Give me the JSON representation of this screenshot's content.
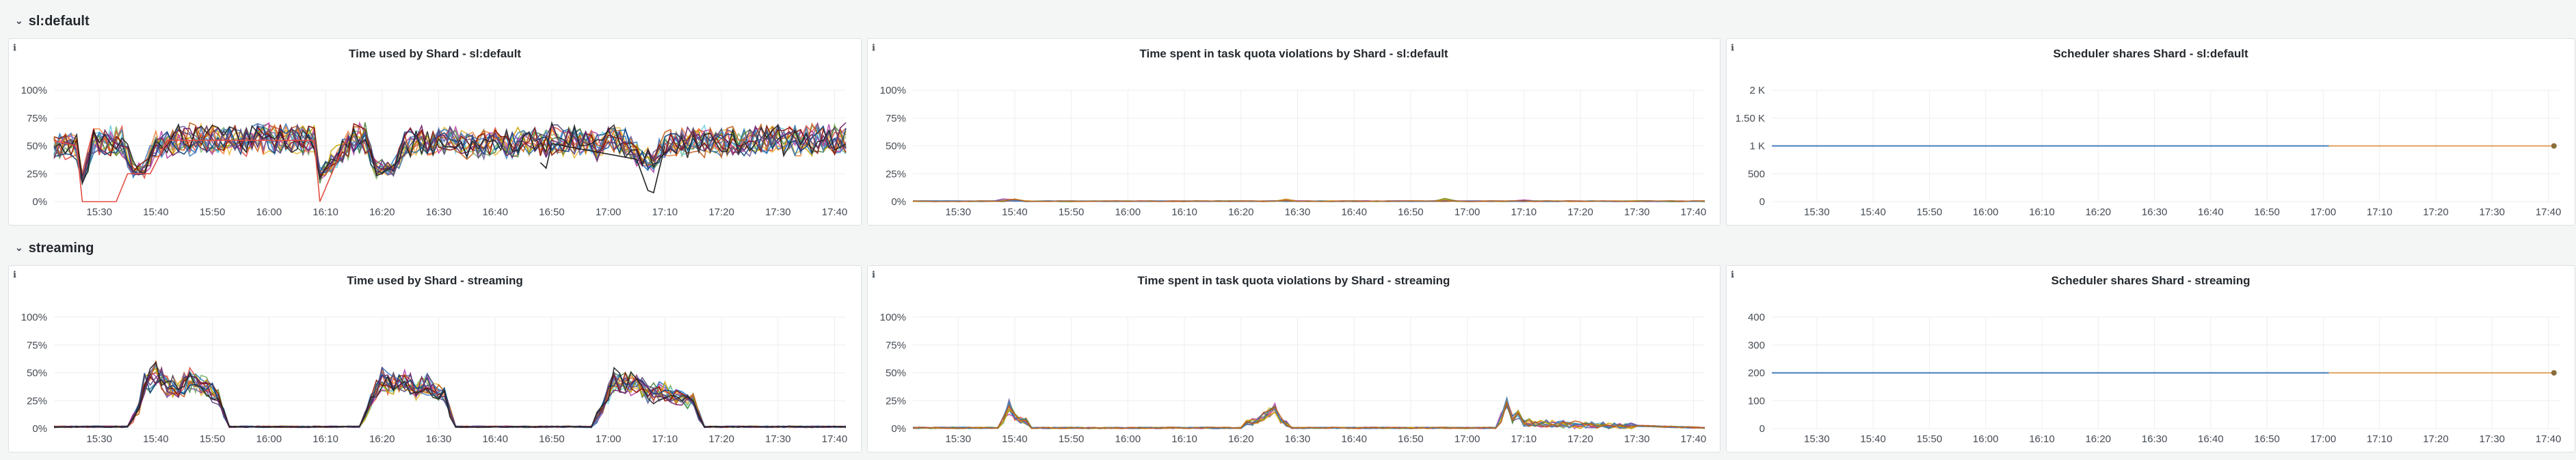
{
  "rows": [
    {
      "title": "sl:default"
    },
    {
      "title": "streaming"
    }
  ],
  "icons": {
    "row_collapse": "chevron-down-icon",
    "panel_info": "info-icon"
  },
  "info_glyph": "ℹ",
  "chevron_glyph": "⌄",
  "colors": {
    "background": "#f4f5f5",
    "panel_bg": "#ffffff",
    "series_palette": [
      "#7eb26d",
      "#eab839",
      "#6ed0e0",
      "#ef843c",
      "#e24d42",
      "#1f78c1",
      "#ba43a9",
      "#705da0",
      "#508642",
      "#cca300",
      "#447ebc",
      "#c15c17",
      "#890f02",
      "#0a437c",
      "#6d1f62",
      "#584477",
      "#222222"
    ],
    "shares_before": "#447ebc",
    "shares_after": "#e0a05b"
  },
  "chart_data": [
    {
      "id": "time-used-default",
      "type": "line",
      "title": "Time used by Shard - sl:default",
      "x_ticks": [
        "15:30",
        "15:40",
        "15:50",
        "16:00",
        "16:10",
        "16:20",
        "16:30",
        "16:40",
        "16:50",
        "17:00",
        "17:10",
        "17:20",
        "17:30",
        "17:40"
      ],
      "y_ticks": [
        "0%",
        "25%",
        "50%",
        "75%",
        "100%"
      ],
      "ylim": [
        0,
        100
      ],
      "x_minutes_range": [
        "15:22",
        "17:42"
      ],
      "series_count": 17,
      "series_base": {
        "x": [
          "15:22",
          "15:26",
          "15:27",
          "15:29",
          "15:34",
          "15:36",
          "15:38",
          "15:40",
          "15:44",
          "15:50",
          "16:00",
          "16:08",
          "16:09",
          "16:15",
          "16:17",
          "16:19",
          "16:22",
          "16:24",
          "16:26",
          "16:30",
          "16:40",
          "16:48",
          "16:50",
          "16:56",
          "16:58",
          "17:00",
          "17:02",
          "17:06",
          "17:08",
          "17:10",
          "17:16",
          "17:20",
          "17:30",
          "17:42"
        ],
        "y": [
          50,
          52,
          20,
          55,
          55,
          30,
          30,
          52,
          57,
          57,
          58,
          57,
          25,
          58,
          58,
          30,
          30,
          55,
          55,
          55,
          53,
          55,
          57,
          55,
          52,
          57,
          57,
          40,
          38,
          53,
          56,
          56,
          57,
          58
        ]
      },
      "outliers": [
        {
          "x": [
            "15:22",
            "15:26",
            "15:27",
            "15:33",
            "15:35",
            "15:39",
            "15:42",
            "16:08",
            "16:09",
            "16:14"
          ],
          "y": [
            55,
            50,
            0,
            0,
            25,
            25,
            55,
            55,
            0,
            60
          ]
        },
        {
          "x": [
            "16:48",
            "16:49",
            "16:50",
            "17:05",
            "17:07",
            "17:08",
            "17:10"
          ],
          "y": [
            35,
            30,
            52,
            38,
            10,
            8,
            50
          ]
        }
      ]
    },
    {
      "id": "quota-violations-default",
      "type": "line",
      "title": "Time spent in task quota violations by Shard - sl:default",
      "x_ticks": [
        "15:30",
        "15:40",
        "15:50",
        "16:00",
        "16:10",
        "16:20",
        "16:30",
        "16:40",
        "16:50",
        "17:00",
        "17:10",
        "17:20",
        "17:30",
        "17:40"
      ],
      "y_ticks": [
        "0%",
        "25%",
        "50%",
        "75%",
        "100%"
      ],
      "ylim": [
        0,
        100
      ],
      "x_minutes_range": [
        "15:22",
        "17:42"
      ],
      "series_count": 12,
      "spikes": [
        {
          "x": "15:39",
          "y": 2
        },
        {
          "x": "16:28",
          "y": 2
        },
        {
          "x": "16:56",
          "y": 3
        },
        {
          "x": "17:10",
          "y": 2
        }
      ]
    },
    {
      "id": "shares-default",
      "type": "line",
      "title": "Scheduler shares Shard - sl:default",
      "x_ticks": [
        "15:30",
        "15:40",
        "15:50",
        "16:00",
        "16:10",
        "16:20",
        "16:30",
        "16:40",
        "16:50",
        "17:00",
        "17:10",
        "17:20",
        "17:30",
        "17:40"
      ],
      "y_ticks": [
        "0",
        "500",
        "1 K",
        "1.50 K",
        "2 K"
      ],
      "ylim": [
        0,
        2000
      ],
      "x_minutes_range": [
        "15:22",
        "17:42"
      ],
      "series": [
        {
          "x": [
            "15:22",
            "17:01"
          ],
          "y": [
            1000,
            1000
          ]
        },
        {
          "x": [
            "17:01",
            "17:41"
          ],
          "y": [
            1000,
            1000
          ]
        }
      ]
    },
    {
      "id": "time-used-streaming",
      "type": "line",
      "title": "Time used by Shard - streaming",
      "x_ticks": [
        "15:30",
        "15:40",
        "15:50",
        "16:00",
        "16:10",
        "16:20",
        "16:30",
        "16:40",
        "16:50",
        "17:00",
        "17:10",
        "17:20",
        "17:30",
        "17:40"
      ],
      "y_ticks": [
        "0%",
        "25%",
        "50%",
        "75%",
        "100%"
      ],
      "ylim": [
        0,
        100
      ],
      "x_minutes_range": [
        "15:22",
        "17:42"
      ],
      "series_count": 17,
      "series_base": {
        "x": [
          "15:22",
          "15:35",
          "15:37",
          "15:38",
          "15:40",
          "15:42",
          "15:44",
          "15:46",
          "15:48",
          "15:51",
          "15:53",
          "16:16",
          "16:18",
          "16:20",
          "16:22",
          "16:24",
          "16:26",
          "16:28",
          "16:31",
          "16:33",
          "16:57",
          "16:59",
          "17:01",
          "17:03",
          "17:05",
          "17:07",
          "17:09",
          "17:12",
          "17:15",
          "17:17",
          "17:42"
        ],
        "y": [
          1,
          1,
          20,
          40,
          50,
          40,
          35,
          45,
          40,
          30,
          1,
          1,
          25,
          45,
          40,
          45,
          35,
          40,
          30,
          1,
          1,
          20,
          45,
          40,
          45,
          30,
          35,
          30,
          25,
          1,
          1
        ]
      }
    },
    {
      "id": "quota-violations-streaming",
      "type": "line",
      "title": "Time spent in task quota violations by Shard - streaming",
      "x_ticks": [
        "15:30",
        "15:40",
        "15:50",
        "16:00",
        "16:10",
        "16:20",
        "16:30",
        "16:40",
        "16:50",
        "17:00",
        "17:10",
        "17:20",
        "17:30",
        "17:40"
      ],
      "y_ticks": [
        "0%",
        "25%",
        "50%",
        "75%",
        "100%"
      ],
      "ylim": [
        0,
        100
      ],
      "x_minutes_range": [
        "15:22",
        "17:42"
      ],
      "series_count": 12,
      "series_base": {
        "x": [
          "15:22",
          "15:37",
          "15:38",
          "15:39",
          "15:40",
          "15:42",
          "15:43",
          "16:20",
          "16:21",
          "16:23",
          "16:26",
          "16:27",
          "16:29",
          "17:05",
          "17:06",
          "17:07",
          "17:08",
          "17:09",
          "17:10",
          "17:42"
        ],
        "y": [
          0,
          0,
          8,
          20,
          10,
          6,
          0,
          0,
          5,
          8,
          18,
          8,
          0,
          0,
          10,
          25,
          8,
          12,
          5,
          0
        ]
      }
    },
    {
      "id": "shares-streaming",
      "type": "line",
      "title": "Scheduler shares Shard - streaming",
      "x_ticks": [
        "15:30",
        "15:40",
        "15:50",
        "16:00",
        "16:10",
        "16:20",
        "16:30",
        "16:40",
        "16:50",
        "17:00",
        "17:10",
        "17:20",
        "17:30",
        "17:40"
      ],
      "y_ticks": [
        "0",
        "100",
        "200",
        "300",
        "400"
      ],
      "ylim": [
        0,
        400
      ],
      "x_minutes_range": [
        "15:22",
        "17:42"
      ],
      "series": [
        {
          "x": [
            "15:22",
            "17:01"
          ],
          "y": [
            200,
            200
          ]
        },
        {
          "x": [
            "17:01",
            "17:41"
          ],
          "y": [
            200,
            200
          ]
        }
      ]
    }
  ]
}
